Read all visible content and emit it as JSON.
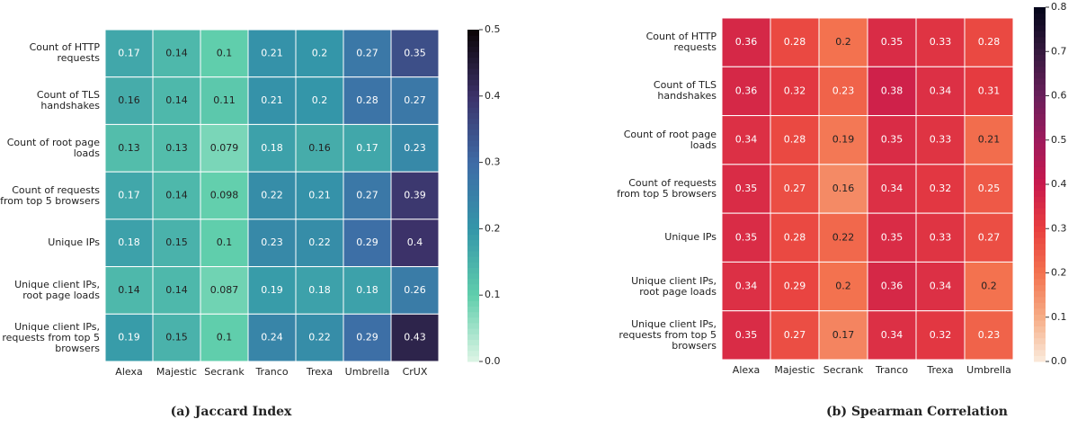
{
  "chart_data": [
    {
      "type": "heatmap",
      "caption": "(a) Jaccard Index",
      "x": [
        "Alexa",
        "Majestic",
        "Secrank",
        "Tranco",
        "Trexa",
        "Umbrella",
        "CrUX"
      ],
      "y": [
        "Count of HTTP requests",
        "Count of TLS handshakes",
        "Count of root page loads",
        "Count of requests from top 5 browsers",
        "Unique IPs",
        "Unique client IPs, root page loads",
        "Unique client IPs, requests from top 5 browsers"
      ],
      "values": [
        [
          0.17,
          0.14,
          0.1,
          0.21,
          0.2,
          0.27,
          0.35
        ],
        [
          0.16,
          0.14,
          0.11,
          0.21,
          0.2,
          0.28,
          0.27
        ],
        [
          0.13,
          0.13,
          0.079,
          0.18,
          0.16,
          0.17,
          0.23
        ],
        [
          0.17,
          0.14,
          0.098,
          0.22,
          0.21,
          0.27,
          0.39
        ],
        [
          0.18,
          0.15,
          0.1,
          0.23,
          0.22,
          0.29,
          0.4
        ],
        [
          0.14,
          0.14,
          0.087,
          0.19,
          0.18,
          0.18,
          0.26
        ],
        [
          0.19,
          0.15,
          0.1,
          0.24,
          0.22,
          0.29,
          0.43
        ]
      ],
      "zlim": [
        0,
        0.5
      ],
      "zticks": [
        {
          "value": 0,
          "label": "0.0"
        },
        0.1,
        0.2,
        0.3,
        0.4,
        0.5
      ],
      "colorscale": [
        "#def5e5",
        "#60ceac",
        "#3496a9",
        "#3e6ba6",
        "#3c3269",
        "#0b0405"
      ]
    },
    {
      "type": "heatmap",
      "caption": "(b) Spearman Correlation",
      "x": [
        "Alexa",
        "Majestic",
        "Secrank",
        "Tranco",
        "Trexa",
        "Umbrella"
      ],
      "y": [
        "Count of HTTP requests",
        "Count of TLS handshakes",
        "Count of root page loads",
        "Count of requests from top 5 browsers",
        "Unique IPs",
        "Unique client IPs, root page loads",
        "Unique client IPs, requests from top 5 browsers"
      ],
      "values": [
        [
          0.36,
          0.28,
          0.2,
          0.35,
          0.33,
          0.28
        ],
        [
          0.36,
          0.32,
          0.23,
          0.38,
          0.34,
          0.31
        ],
        [
          0.34,
          0.28,
          0.19,
          0.35,
          0.33,
          0.21
        ],
        [
          0.35,
          0.27,
          0.16,
          0.34,
          0.32,
          0.25
        ],
        [
          0.35,
          0.28,
          0.22,
          0.35,
          0.33,
          0.27
        ],
        [
          0.34,
          0.29,
          0.2,
          0.36,
          0.34,
          0.2
        ],
        [
          0.35,
          0.27,
          0.17,
          0.34,
          0.32,
          0.23
        ]
      ],
      "zlim": [
        0,
        0.8
      ],
      "zticks": [
        {
          "value": 0,
          "label": "0.0"
        },
        0.1,
        0.2,
        0.3,
        0.4,
        0.5,
        0.6,
        0.7,
        0.8
      ],
      "colorscale": [
        "#faebdd",
        "#f6ad86",
        "#f3724f",
        "#e83f3f",
        "#c9194d",
        "#9e1a5c",
        "#6a1f5b",
        "#35193e",
        "#03051a"
      ]
    }
  ]
}
